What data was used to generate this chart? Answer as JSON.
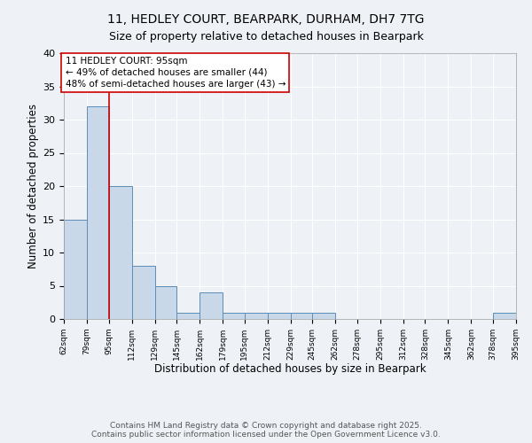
{
  "title_line1": "11, HEDLEY COURT, BEARPARK, DURHAM, DH7 7TG",
  "title_line2": "Size of property relative to detached houses in Bearpark",
  "xlabel": "Distribution of detached houses by size in Bearpark",
  "ylabel": "Number of detached properties",
  "bar_edges": [
    62,
    79,
    95,
    112,
    129,
    145,
    162,
    179,
    195,
    212,
    229,
    245,
    262,
    278,
    295,
    312,
    328,
    345,
    362,
    378,
    395
  ],
  "bar_heights": [
    15,
    32,
    20,
    8,
    5,
    1,
    4,
    1,
    1,
    1,
    1,
    1,
    0,
    0,
    0,
    0,
    0,
    0,
    0,
    1
  ],
  "bar_color": "#c8d8e8",
  "bar_edge_color": "#5b8db8",
  "vline_x": 95,
  "vline_color": "#cc0000",
  "annotation_text": "11 HEDLEY COURT: 95sqm\n← 49% of detached houses are smaller (44)\n48% of semi-detached houses are larger (43) →",
  "annotation_box_color": "white",
  "annotation_box_edge_color": "#cc0000",
  "annotation_fontsize": 7.5,
  "ylim": [
    0,
    40
  ],
  "yticks": [
    0,
    5,
    10,
    15,
    20,
    25,
    30,
    35,
    40
  ],
  "tick_labels": [
    "62sqm",
    "79sqm",
    "95sqm",
    "112sqm",
    "129sqm",
    "145sqm",
    "162sqm",
    "179sqm",
    "195sqm",
    "212sqm",
    "229sqm",
    "245sqm",
    "262sqm",
    "278sqm",
    "295sqm",
    "312sqm",
    "328sqm",
    "345sqm",
    "362sqm",
    "378sqm",
    "395sqm"
  ],
  "footer_text": "Contains HM Land Registry data © Crown copyright and database right 2025.\nContains public sector information licensed under the Open Government Licence v3.0.",
  "background_color": "#eef2f7",
  "grid_color": "#ffffff",
  "title_fontsize": 10,
  "subtitle_fontsize": 9,
  "axis_fontsize": 8.5,
  "footer_fontsize": 6.5,
  "tick_fontsize": 6.5,
  "ytick_fontsize": 8
}
